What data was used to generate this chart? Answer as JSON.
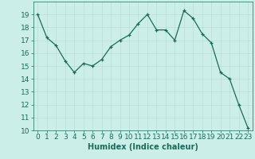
{
  "x": [
    0,
    1,
    2,
    3,
    4,
    5,
    6,
    7,
    8,
    9,
    10,
    11,
    12,
    13,
    14,
    15,
    16,
    17,
    18,
    19,
    20,
    21,
    22,
    23
  ],
  "y": [
    19.0,
    17.2,
    16.6,
    15.4,
    14.5,
    15.2,
    15.0,
    15.5,
    16.5,
    17.0,
    17.4,
    18.3,
    19.0,
    17.8,
    17.8,
    17.0,
    19.3,
    18.7,
    17.5,
    16.8,
    14.5,
    14.0,
    12.0,
    10.2
  ],
  "xlabel": "Humidex (Indice chaleur)",
  "ylim": [
    10,
    20
  ],
  "xlim": [
    -0.5,
    23.5
  ],
  "yticks": [
    10,
    11,
    12,
    13,
    14,
    15,
    16,
    17,
    18,
    19
  ],
  "xticks": [
    0,
    1,
    2,
    3,
    4,
    5,
    6,
    7,
    8,
    9,
    10,
    11,
    12,
    13,
    14,
    15,
    16,
    17,
    18,
    19,
    20,
    21,
    22,
    23
  ],
  "line_color": "#1a6b5a",
  "bg_color": "#cceee8",
  "grid_color": "#b8ddd8",
  "label_fontsize": 7,
  "tick_fontsize": 6.5
}
